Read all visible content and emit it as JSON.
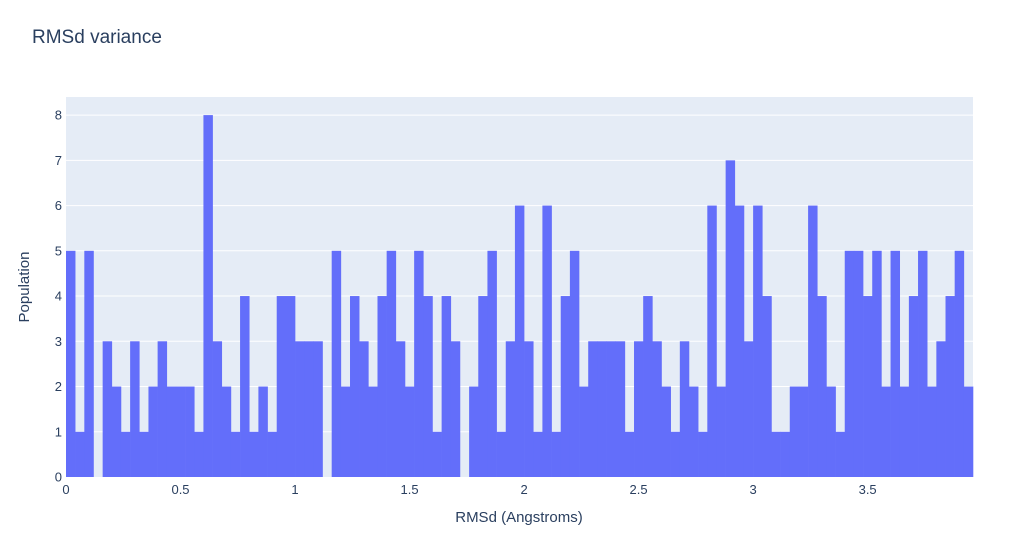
{
  "chart_data": {
    "type": "bar",
    "title": "RMSd variance",
    "xlabel": "RMSd (Angstroms)",
    "ylabel": "Population",
    "bin_width": 0.04,
    "x_start": 0,
    "values": [
      5,
      1,
      5,
      0,
      3,
      2,
      1,
      3,
      1,
      2,
      3,
      2,
      2,
      2,
      1,
      8,
      3,
      2,
      1,
      4,
      1,
      2,
      1,
      4,
      4,
      3,
      3,
      3,
      0,
      5,
      2,
      4,
      3,
      2,
      4,
      5,
      3,
      2,
      5,
      4,
      1,
      4,
      3,
      0,
      2,
      4,
      5,
      1,
      3,
      6,
      3,
      1,
      6,
      1,
      4,
      5,
      2,
      3,
      3,
      3,
      3,
      1,
      3,
      4,
      3,
      2,
      1,
      3,
      2,
      1,
      6,
      2,
      7,
      6,
      3,
      6,
      4,
      1,
      1,
      2,
      2,
      6,
      4,
      2,
      1,
      5,
      5,
      4,
      5,
      2,
      5,
      2,
      4,
      5,
      2,
      3,
      4,
      5,
      2
    ],
    "xlim": [
      0,
      3.96
    ],
    "ylim": [
      0,
      8.4
    ],
    "x_ticks": [
      0,
      0.5,
      1,
      1.5,
      2,
      2.5,
      3,
      3.5
    ],
    "x_tick_labels": [
      "0",
      "0.5",
      "1",
      "1.5",
      "2",
      "2.5",
      "3",
      "3.5"
    ],
    "y_ticks": [
      0,
      1,
      2,
      3,
      4,
      5,
      6,
      7,
      8
    ],
    "y_tick_labels": [
      "0",
      "1",
      "2",
      "3",
      "4",
      "5",
      "6",
      "7",
      "8"
    ],
    "grid": true,
    "bar_color": "#636efa",
    "plot_bg": "#e5ecf6"
  }
}
